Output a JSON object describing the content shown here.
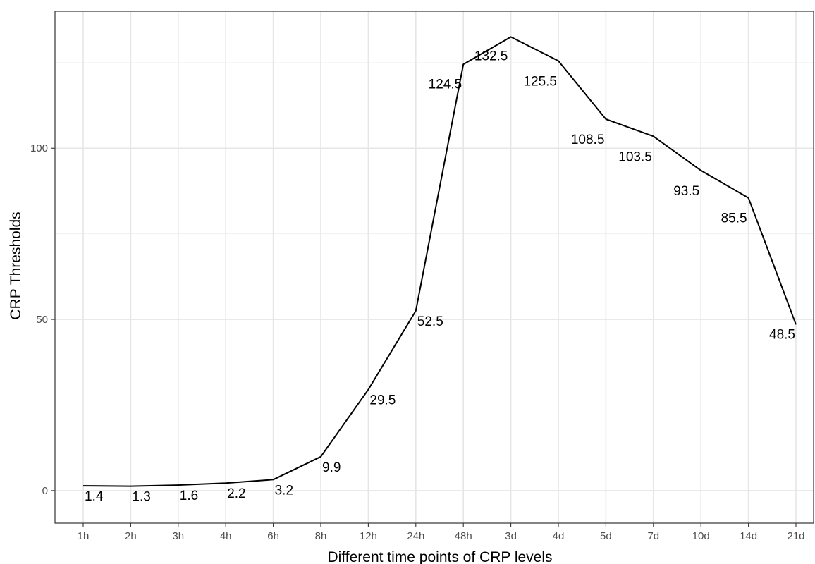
{
  "chart_data": {
    "type": "line",
    "categories": [
      "1h",
      "2h",
      "3h",
      "4h",
      "6h",
      "8h",
      "12h",
      "24h",
      "48h",
      "3d",
      "4d",
      "5d",
      "7d",
      "10d",
      "14d",
      "21d"
    ],
    "series": [
      {
        "values": [
          1.4,
          1.3,
          1.6,
          2.2,
          3.2,
          9.9,
          29.5,
          52.5,
          124.5,
          132.5,
          125.5,
          108.5,
          103.5,
          93.5,
          85.5,
          48.5
        ],
        "color": "#000000"
      }
    ],
    "data_labels": [
      "1.4",
      "1.3",
      "1.6",
      "2.2",
      "3.2",
      "9.9",
      "29.5",
      "52.5",
      "124.5",
      "132.5",
      "125.5",
      "108.5",
      "103.5",
      "93.5",
      "85.5",
      "48.5"
    ],
    "xlabel": "Different time points of CRP levels",
    "ylabel": "CRP Thresholds",
    "yticks": [
      0,
      50,
      100
    ],
    "yticks_text": [
      "0",
      "50",
      "100"
    ],
    "ylim": [
      -9.5,
      140
    ],
    "grid": true,
    "legend": "none"
  }
}
